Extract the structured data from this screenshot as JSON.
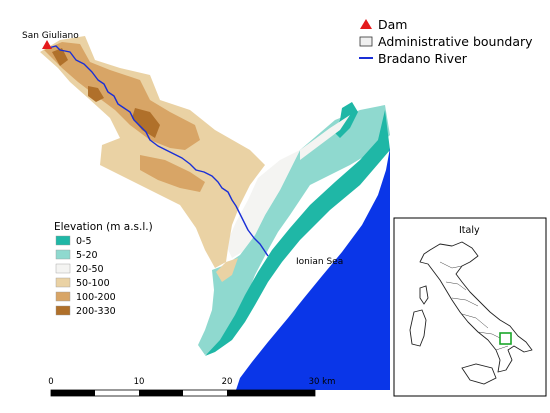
{
  "map": {
    "places": {
      "dam_site": "San Giuliano",
      "sea": "Ionian Sea"
    },
    "legend_top": [
      {
        "label": "Dam",
        "symbol": "red-triangle",
        "color": "#e41a1c"
      },
      {
        "label": "Administrative boundary",
        "symbol": "grey-rectangle",
        "color": "#f0f0f0"
      },
      {
        "label": "Bradano River",
        "symbol": "blue-line",
        "color": "#1a2fd6"
      }
    ],
    "elevation_legend": {
      "title": "Elevation (m a.s.l.)",
      "classes": [
        {
          "label": "0-5",
          "color": "#1fb7a6"
        },
        {
          "label": "5-20",
          "color": "#8fd9cf"
        },
        {
          "label": "20-50",
          "color": "#f4f4f2"
        },
        {
          "label": "50-100",
          "color": "#ead2a4"
        },
        {
          "label": "100-200",
          "color": "#d8a566"
        },
        {
          "label": "200-330",
          "color": "#b0702a"
        }
      ]
    },
    "sea_color": "#0a36e8",
    "inset": {
      "title": "Italy",
      "highlight_color": "#1aa62a"
    },
    "scale_bar": {
      "labels": [
        "0",
        "10",
        "20",
        "30 km"
      ]
    }
  }
}
